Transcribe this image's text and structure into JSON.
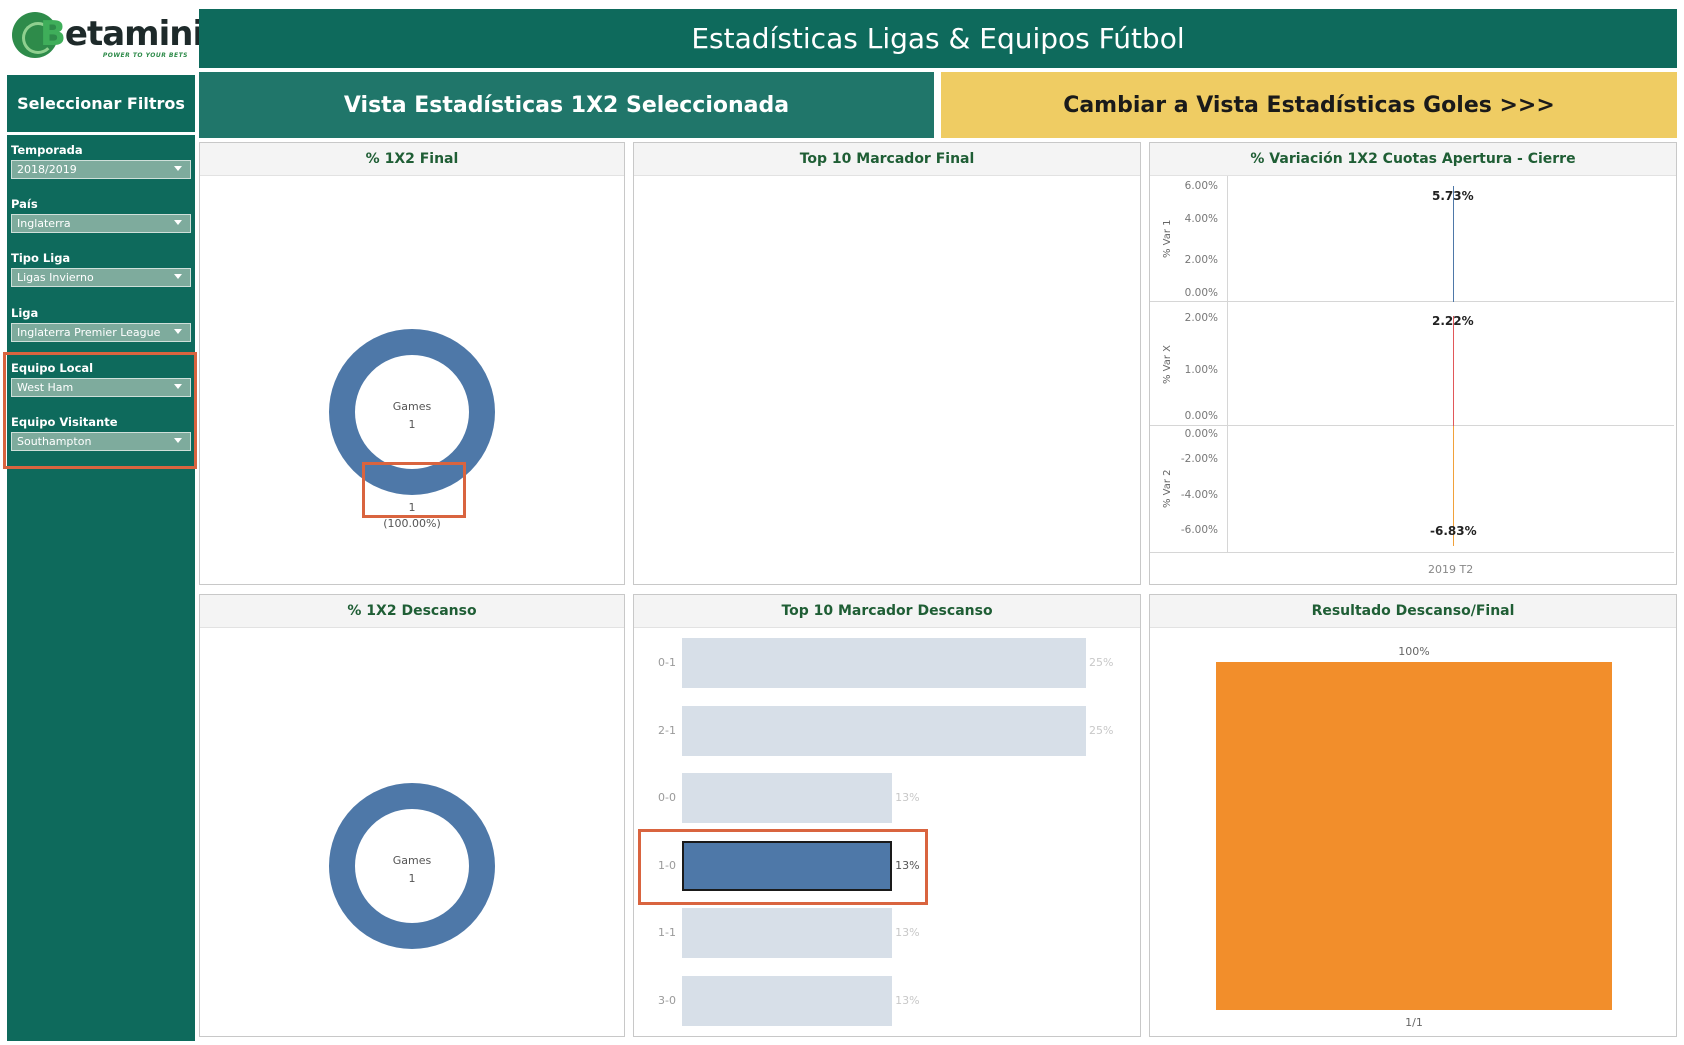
{
  "logo": {
    "text_b": "B",
    "text_rest": "etaminic",
    "tagline": "POWER TO YOUR BETS"
  },
  "header": {
    "title": "Estadísticas Ligas & Equipos Fútbol"
  },
  "sidebar": {
    "title": "Seleccionar Filtros",
    "filters": [
      {
        "label": "Temporada",
        "value": "2018/2019"
      },
      {
        "label": "País",
        "value": "Inglaterra"
      },
      {
        "label": "Tipo Liga",
        "value": "Ligas Invierno"
      },
      {
        "label": "Liga",
        "value": "Inglaterra Premier League"
      },
      {
        "label": "Equipo Local",
        "value": "West Ham"
      },
      {
        "label": "Equipo Visitante",
        "value": "Southampton"
      }
    ]
  },
  "views": {
    "current": "Vista Estadísticas 1X2 Seleccionada",
    "switch": "Cambiar a Vista Estadísticas Goles >>>"
  },
  "colors": {
    "brand_green": "#0e6a5c",
    "accent_yellow": "#efcc63",
    "donut_blue": "#4e78a8",
    "annotation_orange": "#d9643f",
    "result_orange": "#f28e2b"
  },
  "panels": {
    "final_1x2": {
      "title": "% 1X2 Final",
      "center_label": "Games",
      "center_value": "1",
      "slice_label": "1",
      "slice_pct": "(100.00%)"
    },
    "top10_final": {
      "title": "Top 10 Marcador Final"
    },
    "variation": {
      "title": "% Variación 1X2 Cuotas Apertura - Cierre",
      "x_label": "2019 T2",
      "rows": [
        {
          "axis": "% Var 1",
          "ticks": [
            "6.00%",
            "4.00%",
            "2.00%",
            "0.00%"
          ],
          "value": 5.73,
          "value_label": "5.73%",
          "color": "#4e78a8"
        },
        {
          "axis": "% Var X",
          "ticks": [
            "2.00%",
            "1.00%",
            "0.00%"
          ],
          "value": 2.22,
          "value_label": "2.22%",
          "color": "#e15759"
        },
        {
          "axis": "% Var 2",
          "ticks": [
            "0.00%",
            "-2.00%",
            "-4.00%",
            "-6.00%"
          ],
          "value": -6.83,
          "value_label": "-6.83%",
          "color": "#f1a13a"
        }
      ]
    },
    "ht_1x2": {
      "title": "% 1X2 Descanso",
      "center_label": "Games",
      "center_value": "1"
    },
    "top10_ht": {
      "title": "Top 10 Marcador Descanso",
      "selected": "1-0"
    },
    "ht_ft": {
      "title": "Resultado Descanso/Final"
    }
  },
  "chart_data": [
    {
      "type": "bar",
      "title": "Top 10 Marcador Descanso",
      "categories": [
        "0-1",
        "2-1",
        "0-0",
        "1-0",
        "1-1",
        "3-0"
      ],
      "values": [
        25,
        25,
        13,
        13,
        13,
        13
      ],
      "value_labels": [
        "25%",
        "25%",
        "13%",
        "13%",
        "13%",
        "13%"
      ],
      "orientation": "horizontal",
      "xlim": [
        0,
        25
      ]
    },
    {
      "type": "bar",
      "title": "Resultado Descanso/Final",
      "categories": [
        "1/1"
      ],
      "values": [
        100
      ],
      "value_labels": [
        "100%"
      ],
      "ylim": [
        0,
        100
      ]
    },
    {
      "type": "pie",
      "title": "% 1X2 Final",
      "categories": [
        "1"
      ],
      "values": [
        100
      ]
    }
  ]
}
